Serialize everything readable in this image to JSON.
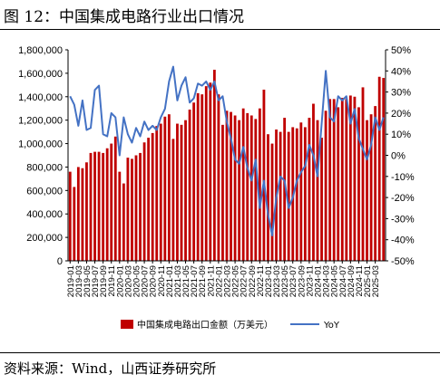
{
  "header": {
    "title": "图 12：中国集成电路行业出口情况"
  },
  "footer": {
    "source": "资料来源：Wind，山西证券研究所"
  },
  "chart_data": {
    "type": "bar",
    "title": "",
    "xlabel": "",
    "ylabel": "",
    "ylim": [
      0,
      1800000
    ],
    "y2lim": [
      -50,
      50
    ],
    "y_ticks": [
      "0",
      "200,000",
      "400,000",
      "600,000",
      "800,000",
      "1,000,000",
      "1,200,000",
      "1,400,000",
      "1,600,000",
      "1,800,000"
    ],
    "y2_ticks": [
      "-50%",
      "-40%",
      "-30%",
      "-20%",
      "-10%",
      "0%",
      "10%",
      "20%",
      "30%",
      "40%",
      "50%"
    ],
    "categories": [
      "2019-01",
      "2019-02",
      "2019-03",
      "2019-04",
      "2019-05",
      "2019-06",
      "2019-07",
      "2019-08",
      "2019-09",
      "2019-10",
      "2019-11",
      "2019-12",
      "2020-01",
      "2020-02",
      "2020-03",
      "2020-04",
      "2020-05",
      "2020-06",
      "2020-07",
      "2020-08",
      "2020-09",
      "2020-10",
      "2020-11",
      "2020-12",
      "2021-01",
      "2021-02",
      "2021-03",
      "2021-04",
      "2021-05",
      "2021-06",
      "2021-07",
      "2021-08",
      "2021-09",
      "2021-10",
      "2021-11",
      "2021-12",
      "2022-01",
      "2022-02",
      "2022-03",
      "2022-04",
      "2022-05",
      "2022-06",
      "2022-07",
      "2022-08",
      "2022-09",
      "2022-10",
      "2022-11",
      "2022-12",
      "2023-01",
      "2023-02",
      "2023-03",
      "2023-04",
      "2023-05",
      "2023-06",
      "2023-07",
      "2023-08",
      "2023-09",
      "2023-10",
      "2023-11",
      "2023-12",
      "2024-01",
      "2024-02",
      "2024-03",
      "2024-04",
      "2024-05",
      "2024-06",
      "2024-07",
      "2024-08",
      "2024-09",
      "2024-10",
      "2024-11",
      "2024-12",
      "2025-01",
      "2025-02",
      "2025-03",
      "2025-04",
      "2025-05"
    ],
    "x_tick_labels": [
      "2019-01",
      "2019-03",
      "2019-05",
      "2019-07",
      "2019-09",
      "2019-11",
      "2020-01",
      "2020-03",
      "2020-05",
      "2020-07",
      "2020-09",
      "2020-11",
      "2021-01",
      "2021-03",
      "2021-05",
      "2021-07",
      "2021-09",
      "2021-11",
      "2022-01",
      "2022-03",
      "2022-05",
      "2022-07",
      "2022-09",
      "2022-11",
      "2023-01",
      "2023-03",
      "2023-05",
      "2023-07",
      "2023-09",
      "2023-11",
      "2024-01",
      "2024-03",
      "2024-05",
      "2024-07",
      "2024-09",
      "2024-11",
      "2025-01",
      "2025-03"
    ],
    "series": [
      {
        "name": "中国集成电路出口金额（万美元）",
        "type": "bar",
        "axis": "left",
        "color": "#c00000",
        "values": [
          760000,
          630000,
          800000,
          790000,
          840000,
          920000,
          930000,
          930000,
          920000,
          960000,
          1000000,
          1060000,
          760000,
          660000,
          880000,
          870000,
          900000,
          920000,
          1010000,
          1050000,
          1090000,
          1150000,
          1170000,
          1230000,
          1250000,
          1040000,
          1170000,
          1160000,
          1200000,
          1290000,
          1350000,
          1430000,
          1420000,
          1490000,
          1520000,
          1630000,
          1420000,
          1160000,
          1280000,
          1270000,
          1240000,
          1200000,
          1300000,
          1260000,
          1240000,
          1210000,
          1300000,
          1460000,
          1080000,
          1000000,
          1120000,
          1100000,
          1220000,
          1100000,
          1140000,
          1130000,
          1180000,
          1140000,
          1220000,
          1340000,
          1200000,
          1050000,
          1280000,
          1380000,
          1380000,
          1310000,
          1390000,
          1380000,
          1410000,
          1400000,
          1310000,
          1480000,
          1200000,
          1250000,
          1320000,
          1570000,
          1560000
        ]
      },
      {
        "name": "YoY",
        "type": "line",
        "axis": "right",
        "color": "#4472c4",
        "values": [
          28,
          24,
          14,
          26,
          12,
          13,
          31,
          33,
          10,
          9,
          20,
          18,
          0,
          18,
          10,
          6,
          13,
          9,
          16,
          12,
          14,
          12,
          18,
          22,
          35,
          42,
          26,
          33,
          37,
          25,
          27,
          34,
          33,
          35,
          31,
          35,
          26,
          28,
          16,
          8,
          -2,
          -4,
          4,
          -6,
          -12,
          -2,
          -25,
          -12,
          -28,
          -38,
          -20,
          -10,
          -12,
          -25,
          -20,
          -12,
          -8,
          -5,
          5,
          0,
          -10,
          15,
          40,
          18,
          16,
          28,
          26,
          28,
          15,
          22,
          8,
          3,
          -2,
          5,
          18,
          12,
          18
        ]
      }
    ],
    "legend": {
      "position": "bottom"
    },
    "grid": false
  }
}
